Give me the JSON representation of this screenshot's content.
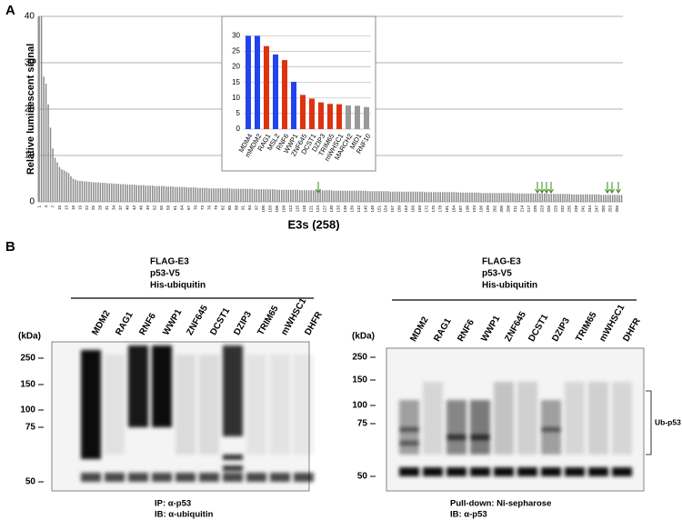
{
  "panel_a": {
    "label": "A",
    "chart_data": {
      "type": "bar",
      "color": "#8c8c8c",
      "y_label": "Relative luminescent signal",
      "x_label": "E3s (258)",
      "ylim": [
        0,
        40
      ],
      "yticks": [
        0,
        10,
        20,
        30,
        40
      ],
      "grid": true,
      "categories": [
        "1",
        null,
        null,
        "4",
        null,
        null,
        "7",
        null,
        null,
        "10",
        null,
        null,
        "13",
        null,
        null,
        "16",
        null,
        null,
        "19",
        null,
        null,
        "22",
        null,
        null,
        "25",
        null,
        null,
        "28",
        null,
        null,
        "31",
        null,
        null,
        "34",
        null,
        null,
        "37",
        null,
        null,
        "40",
        null,
        null,
        "43",
        null,
        null,
        "46",
        null,
        null,
        "49",
        null,
        null,
        "52",
        null,
        null,
        "55",
        null,
        null,
        "58",
        null,
        null,
        "61",
        null,
        null,
        "64",
        null,
        null,
        "67",
        null,
        null,
        "70",
        null,
        null,
        "73",
        null,
        null,
        "76",
        null,
        null,
        "79",
        null,
        null,
        "82",
        null,
        null,
        "85",
        null,
        null,
        "88",
        null,
        null,
        "91",
        null,
        null,
        "94",
        null,
        null,
        "97",
        null,
        null,
        "100",
        null,
        null,
        "103",
        null,
        null,
        "106",
        null,
        null,
        "109",
        null,
        null,
        "112",
        null,
        null,
        "115",
        null,
        null,
        "118",
        null,
        null,
        "121",
        null,
        null,
        "124",
        null,
        null,
        "127",
        null,
        null,
        "130",
        null,
        null,
        "133",
        null,
        null,
        "136",
        null,
        null,
        "139",
        null,
        null,
        "142",
        null,
        null,
        "145",
        null,
        null,
        "148",
        null,
        null,
        "151",
        null,
        null,
        "154",
        null,
        null,
        "157",
        null,
        null,
        "160",
        null,
        null,
        "163",
        null,
        null,
        "166",
        null,
        null,
        "169",
        null,
        null,
        "172",
        null,
        null,
        "175",
        null,
        null,
        "178",
        null,
        null,
        "181",
        null,
        null,
        "184",
        null,
        null,
        "187",
        null,
        null,
        "190",
        null,
        null,
        "193",
        null,
        null,
        "196",
        null,
        null,
        "199",
        null,
        null,
        "202",
        null,
        null,
        "205",
        null,
        null,
        "208",
        null,
        null,
        "211",
        null,
        null,
        "214",
        null,
        null,
        "217",
        null,
        null,
        "220",
        null,
        null,
        "223",
        null,
        null,
        "226",
        null,
        null,
        "229",
        null,
        null,
        "232",
        null,
        null,
        "235",
        null,
        null,
        "238",
        null,
        null,
        "241",
        null,
        null,
        "244",
        null,
        null,
        "247",
        null,
        null,
        "250",
        null,
        null,
        "253",
        null,
        null,
        "256",
        null,
        null
      ],
      "values": [
        40,
        40,
        27,
        25.5,
        21,
        16,
        11.5,
        9.5,
        8.5,
        7.5,
        7,
        6.8,
        6.5,
        6.2,
        5.5,
        5,
        4.8,
        4.6,
        4.5,
        4.5,
        4.4,
        4.4,
        4.3,
        4.3,
        4.2,
        4.2,
        4.2,
        4.1,
        4.1,
        4.1,
        4.0,
        4.0,
        4.0,
        3.9,
        3.9,
        3.9,
        3.8,
        3.8,
        3.8,
        3.7,
        3.7,
        3.7,
        3.7,
        3.6,
        3.6,
        3.6,
        3.6,
        3.5,
        3.5,
        3.5,
        3.5,
        3.4,
        3.4,
        3.4,
        3.4,
        3.4,
        3.3,
        3.3,
        3.3,
        3.3,
        3.2,
        3.2,
        3.2,
        3.2,
        3.2,
        3.1,
        3.1,
        3.1,
        3.1,
        3.1,
        3.0,
        3.0,
        3.0,
        3.0,
        3.0,
        2.9,
        2.9,
        2.9,
        2.9,
        2.9,
        2.9,
        2.9,
        2.9,
        2.9,
        2.9,
        2.8,
        2.8,
        2.8,
        2.8,
        2.8,
        2.8,
        2.8,
        2.8,
        2.8,
        2.8,
        2.7,
        2.7,
        2.7,
        2.7,
        2.7,
        2.7,
        2.7,
        2.7,
        2.7,
        2.7,
        2.6,
        2.6,
        2.6,
        2.6,
        2.6,
        2.6,
        2.6,
        2.6,
        2.6,
        2.6,
        2.5,
        2.5,
        2.5,
        2.5,
        2.5,
        2.5,
        2.5,
        2.5,
        2.5,
        2.5,
        2.5,
        2.5,
        2.5,
        2.5,
        2.5,
        2.4,
        2.4,
        2.4,
        2.4,
        2.4,
        2.4,
        2.4,
        2.4,
        2.4,
        2.4,
        2.4,
        2.4,
        2.4,
        2.4,
        2.4,
        2.3,
        2.3,
        2.3,
        2.3,
        2.3,
        2.3,
        2.3,
        2.3,
        2.3,
        2.3,
        2.2,
        2.2,
        2.2,
        2.2,
        2.2,
        2.2,
        2.2,
        2.2,
        2.2,
        2.2,
        2.2,
        2.2,
        2.2,
        2.2,
        2.2,
        2.1,
        2.1,
        2.1,
        2.1,
        2.1,
        2.1,
        2.1,
        2.1,
        2.1,
        2.1,
        2.1,
        2.1,
        2.1,
        2.1,
        2.1,
        2.0,
        2.0,
        2.0,
        2.0,
        2.0,
        2.0,
        2.0,
        2.0,
        2.0,
        2.0,
        1.9,
        1.9,
        1.9,
        1.9,
        1.9,
        1.9,
        1.9,
        1.9,
        1.9,
        1.9,
        1.9,
        1.9,
        1.9,
        1.9,
        1.9,
        1.8,
        1.8,
        1.8,
        1.8,
        1.8,
        1.8,
        1.8,
        1.8,
        1.8,
        1.8,
        1.8,
        1.8,
        1.8,
        1.8,
        1.8,
        1.7,
        1.7,
        1.7,
        1.7,
        1.7,
        1.7,
        1.7,
        1.7,
        1.7,
        1.7,
        1.6,
        1.6,
        1.6,
        1.6,
        1.6,
        1.6,
        1.6,
        1.6,
        1.6,
        1.6,
        1.6,
        1.6,
        1.6,
        1.5,
        1.5,
        1.5,
        1.5,
        1.5,
        1.5,
        1.5,
        1.5,
        1.5,
        1.5
      ]
    },
    "inset": {
      "type": "bar",
      "ylim": [
        0,
        31
      ],
      "yticks": [
        0,
        5,
        10,
        15,
        20,
        25,
        30
      ],
      "grid": true,
      "categories": [
        "MDM4",
        "mMDM2",
        "RAG1",
        "MSL2",
        "RNF6",
        "WWP1",
        "ZNF645",
        "DCST1",
        "DZIP3",
        "TRIM65",
        "mWHSC1",
        "MARCH2",
        "MID1",
        "RNF10"
      ],
      "values": [
        30,
        30,
        26.7,
        24,
        22.2,
        15.2,
        11,
        9.8,
        8.6,
        8.1,
        8,
        7.6,
        7.5,
        7.1
      ],
      "colors": [
        "#2244ee",
        "#2244ee",
        "#dd3311",
        "#2244ee",
        "#dd3311",
        "#2244ee",
        "#dd3311",
        "#dd3311",
        "#dd3311",
        "#dd3311",
        "#dd3311",
        "#999999",
        "#999999",
        "#999999"
      ]
    }
  },
  "panel_b": {
    "label": "B",
    "left": {
      "header": [
        "FLAG-E3",
        "p53-V5",
        "His-ubiquitin"
      ],
      "unit": "(kDa)",
      "markers": [
        "250",
        "150",
        "100",
        "75",
        "50"
      ],
      "lanes": [
        "MDM2",
        "RAG1",
        "RNF6",
        "WWP1",
        "ZNF645",
        "DCST1",
        "DZIP3",
        "TRIM65",
        "mWHSC1",
        "DHFR"
      ],
      "footer": [
        "IP:  α-p53",
        "IB:  α-ubiquitin"
      ]
    },
    "right": {
      "header": [
        "FLAG-E3",
        "p53-V5",
        "His-ubiquitin"
      ],
      "unit": "(kDa)",
      "markers": [
        "250",
        "150",
        "100",
        "75",
        "50"
      ],
      "lanes": [
        "MDM2",
        "RAG1",
        "RNF6",
        "WWP1",
        "ZNF645",
        "DCST1",
        "DZIP3",
        "TRIM65",
        "mWHSC1",
        "DHFR"
      ],
      "footer": [
        "Pull-down:  Ni-sepharose",
        "IB:  α-p53"
      ],
      "bracket_label": "Ub-p53"
    }
  }
}
